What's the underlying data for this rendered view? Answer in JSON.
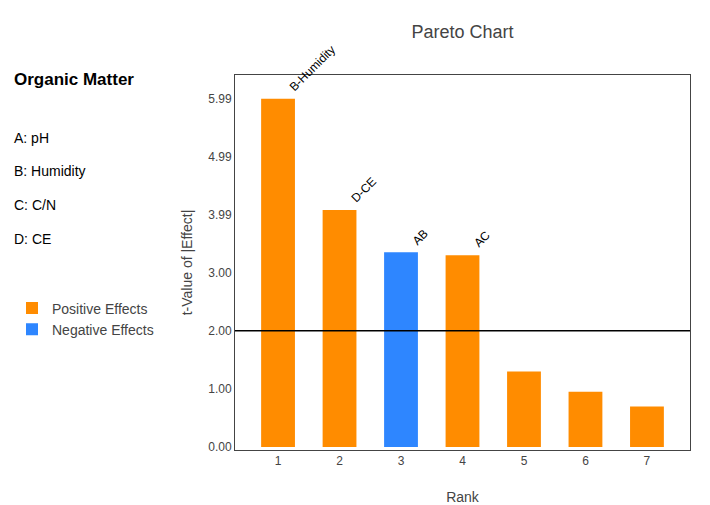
{
  "chart_data": {
    "type": "bar",
    "title": "Pareto Chart",
    "xlabel": "Rank",
    "ylabel": "t-Value of |Effect|",
    "x": [
      1,
      2,
      3,
      4,
      5,
      6,
      7
    ],
    "series": [
      {
        "name": "Positive Effects",
        "color": "#FF8C00",
        "values": [
          5.99,
          4.08,
          null,
          3.3,
          1.3,
          0.95,
          0.7
        ]
      },
      {
        "name": "Negative Effects",
        "color": "#2E86FF",
        "values": [
          null,
          null,
          3.35,
          null,
          null,
          null,
          null
        ]
      }
    ],
    "xlim": [
      0.3,
      7.7
    ],
    "xticks": [
      1,
      2,
      3,
      4,
      5,
      6,
      7
    ],
    "ylim": [
      -0.05,
      6.4
    ],
    "yticks": [
      {
        "value": 0.0,
        "label": "0.00"
      },
      {
        "value": 1.0,
        "label": "1.00"
      },
      {
        "value": 2.0,
        "label": "2.00"
      },
      {
        "value": 3.0,
        "label": "3.00"
      },
      {
        "value": 3.99,
        "label": "3.99"
      },
      {
        "value": 4.99,
        "label": "4.99"
      },
      {
        "value": 5.99,
        "label": "5.99"
      }
    ],
    "reference_lines": [
      {
        "y": 2.0,
        "color": "black"
      }
    ],
    "annotations": [
      {
        "x": 1,
        "text": "B-Humidity"
      },
      {
        "x": 2,
        "text": "D-CE"
      },
      {
        "x": 3,
        "text": "AB"
      },
      {
        "x": 4,
        "text": "AC"
      },
      {
        "text": "Organic Matter"
      },
      {
        "text": "A: pH"
      },
      {
        "text": "B: Humidity"
      },
      {
        "text": "C: C/N"
      },
      {
        "text": "D: CE"
      }
    ],
    "grid": false,
    "legend": "left"
  }
}
